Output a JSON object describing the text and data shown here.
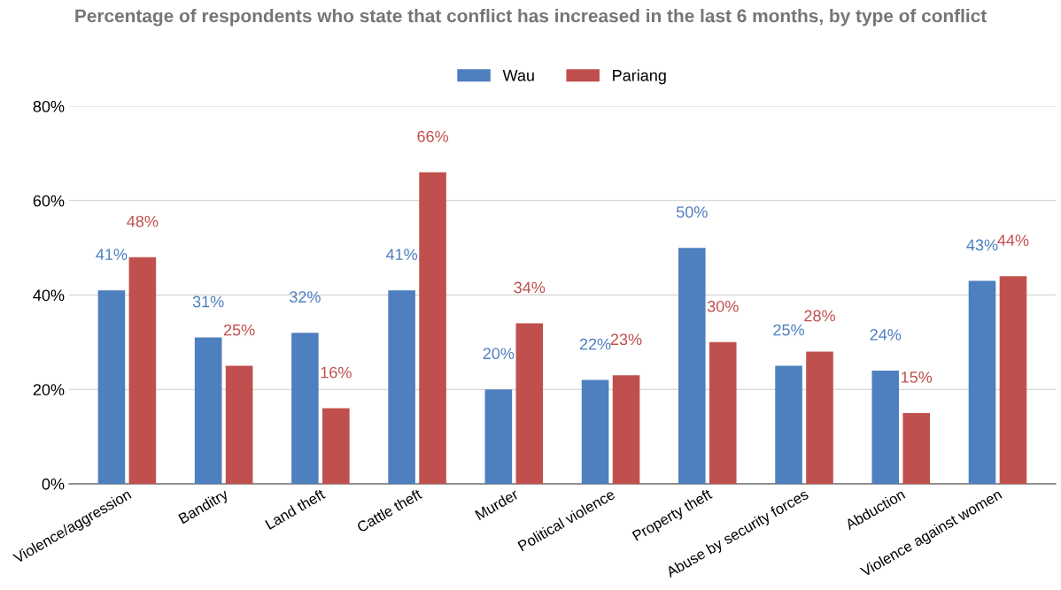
{
  "chart_data": {
    "type": "bar",
    "title": "Percentage of respondents who state that conflict has increased in the last 6 months, by type of conflict",
    "categories": [
      "Violence/aggression",
      "Banditry",
      "Land theft",
      "Cattle theft",
      "Murder",
      "Political violence",
      "Property theft",
      "Abuse by security forces",
      "Abduction",
      "Violence against women"
    ],
    "series": [
      {
        "name": "Wau",
        "color": "#4e7fbe",
        "values": [
          41,
          31,
          32,
          41,
          20,
          22,
          50,
          25,
          24,
          43
        ],
        "value_labels": [
          "41%",
          "31%",
          "32%",
          "41%",
          "20%",
          "22%",
          "50%",
          "25%",
          "24%",
          "43%"
        ]
      },
      {
        "name": "Pariang",
        "color": "#c0504d",
        "values": [
          48,
          25,
          16,
          66,
          34,
          23,
          30,
          28,
          15,
          44
        ],
        "value_labels": [
          "48%",
          "25%",
          "16%",
          "66%",
          "34%",
          "23%",
          "30%",
          "28%",
          "15%",
          "44%"
        ]
      }
    ],
    "ylim": [
      0,
      80
    ],
    "yticks": [
      {
        "value": 0,
        "label": "0%"
      },
      {
        "value": 20,
        "label": "20%"
      },
      {
        "value": 40,
        "label": "40%"
      },
      {
        "value": 60,
        "label": "60%"
      },
      {
        "value": 80,
        "label": "80%"
      }
    ],
    "grid": "y",
    "legend": "top"
  }
}
